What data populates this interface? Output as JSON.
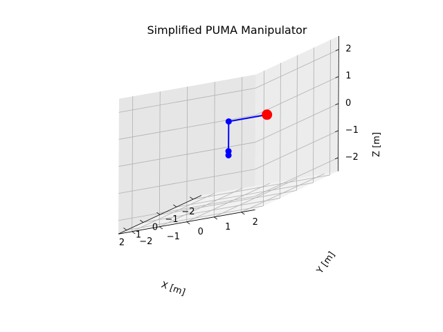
{
  "chart_data": {
    "type": "3d-line",
    "title": "Simplified PUMA Manipulator",
    "xlabel": "X [m]",
    "ylabel": "Y [m]",
    "zlabel": "Z [m]",
    "xlim": [
      -2.5,
      2.5
    ],
    "ylim": [
      -2.5,
      2.5
    ],
    "zlim": [
      -2.5,
      2.5
    ],
    "xticks": [
      -2,
      -1,
      0,
      1,
      2
    ],
    "yticks": [
      -2,
      -1,
      0,
      1,
      2
    ],
    "zticks": [
      -2,
      -1,
      0,
      1,
      2
    ],
    "xtick_labels": [
      "−2",
      "−1",
      "0",
      "1",
      "2"
    ],
    "ytick_labels": [
      "−2",
      "−1",
      "0",
      "1",
      "2"
    ],
    "ztick_labels": [
      "−2",
      "−1",
      "0",
      "1",
      "2"
    ],
    "grid": true,
    "series": [
      {
        "points": [
          {
            "x": 0,
            "y": 0,
            "z": -0.75
          },
          {
            "x": 0,
            "y": 0,
            "z": -0.6
          },
          {
            "x": 0,
            "y": 0,
            "z": 0.5
          },
          {
            "x": 0,
            "y": 1.4,
            "z": 0.5
          }
        ],
        "color": "#0000ff"
      }
    ],
    "joint_color": "#0000ff",
    "end_effector": {
      "x": 0,
      "y": 1.4,
      "z": 0.5,
      "color": "#ff0000"
    }
  }
}
